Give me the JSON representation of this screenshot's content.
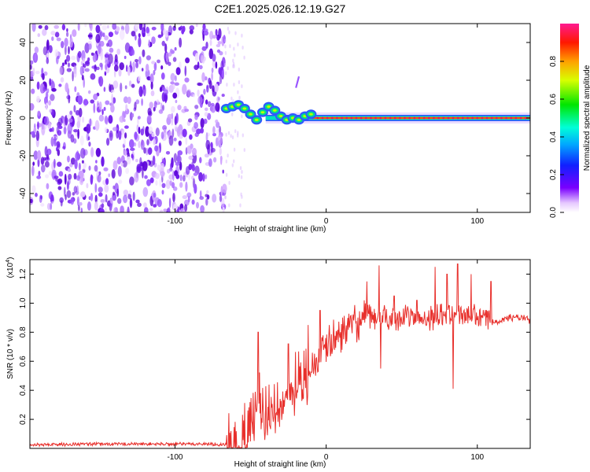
{
  "title": "C2E1.2025.026.12.19.G27",
  "colors": {
    "snr_line": "#e8302c",
    "axis": "#000000",
    "scale_low": "#ffffff",
    "scale_mid": "#6a1ee6",
    "scale_high": "#e00000"
  },
  "chart_data": [
    {
      "type": "heatmap",
      "xlabel": "Height of straight line (km)",
      "ylabel": "Frequency (Hz)",
      "xlim": [
        -196,
        135
      ],
      "ylim": [
        -50,
        50
      ],
      "xticks": [
        -100,
        0,
        100
      ],
      "xtick_labels": [
        "-100",
        "0",
        "100"
      ],
      "yticks": [
        -40,
        -20,
        0,
        20,
        40
      ],
      "ytick_labels": [
        "-40",
        "-20",
        "0",
        "20",
        "40"
      ],
      "grid": false,
      "noise_region_x": [
        -196,
        -67
      ],
      "signal_line_frequency": 0,
      "colorbar": {
        "label": "Normalized spectral amplitude",
        "range": [
          0,
          1
        ],
        "ticks": [
          0.0,
          0.2,
          0.4,
          0.6,
          0.8
        ],
        "tick_labels": [
          "0.0",
          "0.2",
          "0.4",
          "0.6",
          "0.8"
        ],
        "placement": "right"
      }
    },
    {
      "type": "line",
      "xlabel": "Height of straight line (km)",
      "ylabel": "SNR (10 * v/v)",
      "y_multiplier_label": "(x10",
      "y_multiplier_exp": "4",
      "y_multiplier_close": ")",
      "xlim": [
        -196,
        135
      ],
      "ylim": [
        0,
        1.3
      ],
      "xticks": [
        -100,
        0,
        100
      ],
      "xtick_labels": [
        "-100",
        "0",
        "100"
      ],
      "yticks": [
        0.2,
        0.4,
        0.6,
        0.8,
        1.0,
        1.2
      ],
      "ytick_labels": [
        "0.2",
        "0.4",
        "0.6",
        "0.8",
        "1.0",
        "1.2"
      ],
      "grid": false,
      "series": [
        {
          "x": [
            -196,
            -150,
            -100,
            -75,
            -64,
            -58,
            -52,
            -47,
            -45,
            -42,
            -38,
            -35,
            -32,
            -28,
            -24,
            -20,
            -16,
            -12,
            -8,
            -4,
            0,
            5,
            10,
            15,
            20,
            25,
            30,
            35,
            40,
            50,
            60,
            70,
            80,
            90,
            100,
            105,
            110,
            115,
            120,
            125,
            130,
            135
          ],
          "y": [
            0.025,
            0.03,
            0.03,
            0.03,
            0.025,
            0.05,
            0.12,
            0.28,
            0.35,
            0.28,
            0.25,
            0.3,
            0.32,
            0.38,
            0.42,
            0.45,
            0.5,
            0.52,
            0.58,
            0.62,
            0.7,
            0.75,
            0.8,
            0.83,
            0.86,
            0.88,
            0.9,
            0.9,
            0.9,
            0.9,
            0.9,
            0.9,
            0.92,
            0.93,
            0.9,
            0.9,
            0.88,
            0.88,
            0.9,
            0.9,
            0.9,
            0.88
          ],
          "spikes": [
            {
              "x": -45,
              "y": 0.8
            },
            {
              "x": -25,
              "y": 0.72
            },
            {
              "x": -12,
              "y": 0.85
            },
            {
              "x": -4,
              "y": 0.95
            },
            {
              "x": 27,
              "y": 1.15
            },
            {
              "x": 35,
              "y": 1.26
            },
            {
              "x": 45,
              "y": 1.05
            },
            {
              "x": 60,
              "y": 1.02
            },
            {
              "x": 72,
              "y": 1.25
            },
            {
              "x": 80,
              "y": 1.2
            },
            {
              "x": 87,
              "y": 1.27
            },
            {
              "x": 96,
              "y": 1.2
            },
            {
              "x": 109,
              "y": 1.15
            },
            {
              "x": 84,
              "y": 0.41
            },
            {
              "x": 36,
              "y": 0.55
            }
          ]
        }
      ]
    }
  ]
}
